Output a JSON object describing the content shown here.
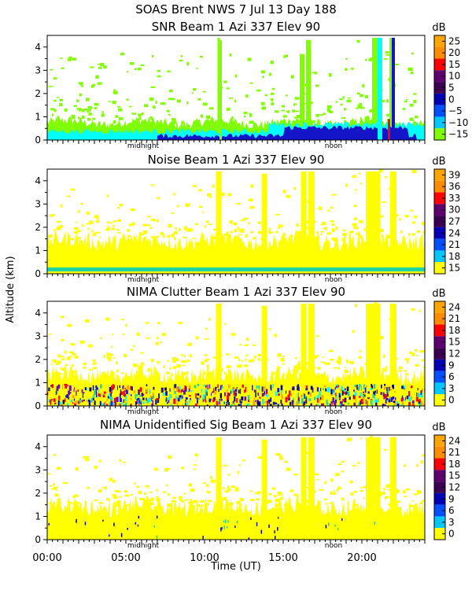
{
  "header": {
    "title": "SOAS Brent NWS    7 Jul 13 Day 188"
  },
  "axes": {
    "ylabel": "Altitude (km)",
    "xlabel": "Time (UT)",
    "x_ticks": [
      "00:00",
      "05:00",
      "10:00",
      "15:00",
      "20:00"
    ],
    "inner_labels": [
      "midnight",
      "noon"
    ],
    "y_ticks": [
      "0",
      "1",
      "2",
      "3",
      "4"
    ]
  },
  "colors": {
    "panel_bg": "#ffffff",
    "yellow": "#ffff00",
    "green": "#7fff00",
    "cyan": "#00ffff",
    "teal": "#1fd4a0",
    "blue": "#1414c8",
    "navy": "#000088",
    "purple": "#6a0dad",
    "dark_purple": "#3c0050",
    "red": "#ff0000",
    "orange": "#ffa500",
    "gold": "#ffb000"
  },
  "chart_data": [
    {
      "type": "heatmap",
      "title": "SNR Beam 1 Azi 337 Elev 90",
      "unit": "dB",
      "colorbar_ticks": [
        "25",
        "20",
        "15",
        "10",
        "5",
        "0",
        "−5",
        "−10",
        "−15"
      ],
      "colorbar_colors": [
        "#ffa500",
        "#ff8c00",
        "#ff0000",
        "#600070",
        "#3c0050",
        "#0000b4",
        "#0050ff",
        "#00c8ff",
        "#7fff00"
      ],
      "x_range_hours": [
        0,
        24
      ],
      "y_range_km": [
        0,
        4.5
      ],
      "background_depth_km": 0.8,
      "columns": [
        {
          "x": 10.9,
          "top": 4.4,
          "width": 0.15
        },
        {
          "x": 16.2,
          "top": 3.7,
          "width": 0.3
        },
        {
          "x": 16.6,
          "top": 4.3,
          "width": 0.3
        },
        {
          "x": 20.9,
          "top": 4.4,
          "width": 0.5
        },
        {
          "x": 21.9,
          "top": 4.4,
          "width": 0.3
        }
      ]
    },
    {
      "type": "heatmap",
      "title": "Noise Beam 1 Azi 337 Elev 90",
      "unit": "dB",
      "colorbar_ticks": [
        "39",
        "36",
        "33",
        "30",
        "27",
        "24",
        "21",
        "18",
        "15"
      ],
      "colorbar_colors": [
        "#ffa500",
        "#ff8c00",
        "#ff0000",
        "#600070",
        "#3c0050",
        "#0000b4",
        "#0050ff",
        "#00c8ff",
        "#ffff00"
      ],
      "x_range_hours": [
        0,
        24
      ],
      "y_range_km": [
        0,
        4.5
      ],
      "background_depth_km": 1.5,
      "columns": [
        {
          "x": 10.9,
          "top": 4.4,
          "width": 0.35
        },
        {
          "x": 13.8,
          "top": 4.3,
          "width": 0.35
        },
        {
          "x": 16.3,
          "top": 4.4,
          "width": 0.35
        },
        {
          "x": 16.8,
          "top": 4.4,
          "width": 0.4
        },
        {
          "x": 20.7,
          "top": 4.4,
          "width": 0.9
        },
        {
          "x": 22.0,
          "top": 4.4,
          "width": 0.4
        }
      ]
    },
    {
      "type": "heatmap",
      "title": "NIMA Clutter Beam 1 Azi 337 Elev 90",
      "unit": "dB",
      "colorbar_ticks": [
        "24",
        "21",
        "18",
        "15",
        "12",
        "9",
        "6",
        "3",
        "0"
      ],
      "colorbar_colors": [
        "#ffa500",
        "#ff8c00",
        "#ff0000",
        "#600070",
        "#3c0050",
        "#0000b4",
        "#0050ff",
        "#00c8ff",
        "#ffff00"
      ],
      "x_range_hours": [
        0,
        24
      ],
      "y_range_km": [
        0,
        4.5
      ],
      "background_depth_km": 1.4,
      "columns": [
        {
          "x": 10.9,
          "top": 4.4,
          "width": 0.35
        },
        {
          "x": 13.8,
          "top": 4.3,
          "width": 0.35
        },
        {
          "x": 16.3,
          "top": 4.4,
          "width": 0.35
        },
        {
          "x": 16.8,
          "top": 4.4,
          "width": 0.4
        },
        {
          "x": 20.7,
          "top": 4.4,
          "width": 0.9
        },
        {
          "x": 22.0,
          "top": 4.4,
          "width": 0.4
        }
      ]
    },
    {
      "type": "heatmap",
      "title": "NIMA Unidentified Sig Beam 1 Azi 337 Elev 90",
      "unit": "dB",
      "colorbar_ticks": [
        "24",
        "21",
        "18",
        "15",
        "12",
        "9",
        "6",
        "3",
        "0"
      ],
      "colorbar_colors": [
        "#ffa500",
        "#ff8c00",
        "#ff0000",
        "#600070",
        "#3c0050",
        "#0000b4",
        "#0050ff",
        "#00c8ff",
        "#ffff00"
      ],
      "x_range_hours": [
        0,
        24
      ],
      "y_range_km": [
        0,
        4.5
      ],
      "background_depth_km": 1.5,
      "columns": [
        {
          "x": 10.9,
          "top": 4.4,
          "width": 0.35
        },
        {
          "x": 13.8,
          "top": 4.3,
          "width": 0.35
        },
        {
          "x": 16.3,
          "top": 4.4,
          "width": 0.35
        },
        {
          "x": 16.8,
          "top": 4.4,
          "width": 0.4
        },
        {
          "x": 20.7,
          "top": 4.4,
          "width": 0.9
        },
        {
          "x": 22.0,
          "top": 4.4,
          "width": 0.4
        }
      ]
    }
  ]
}
